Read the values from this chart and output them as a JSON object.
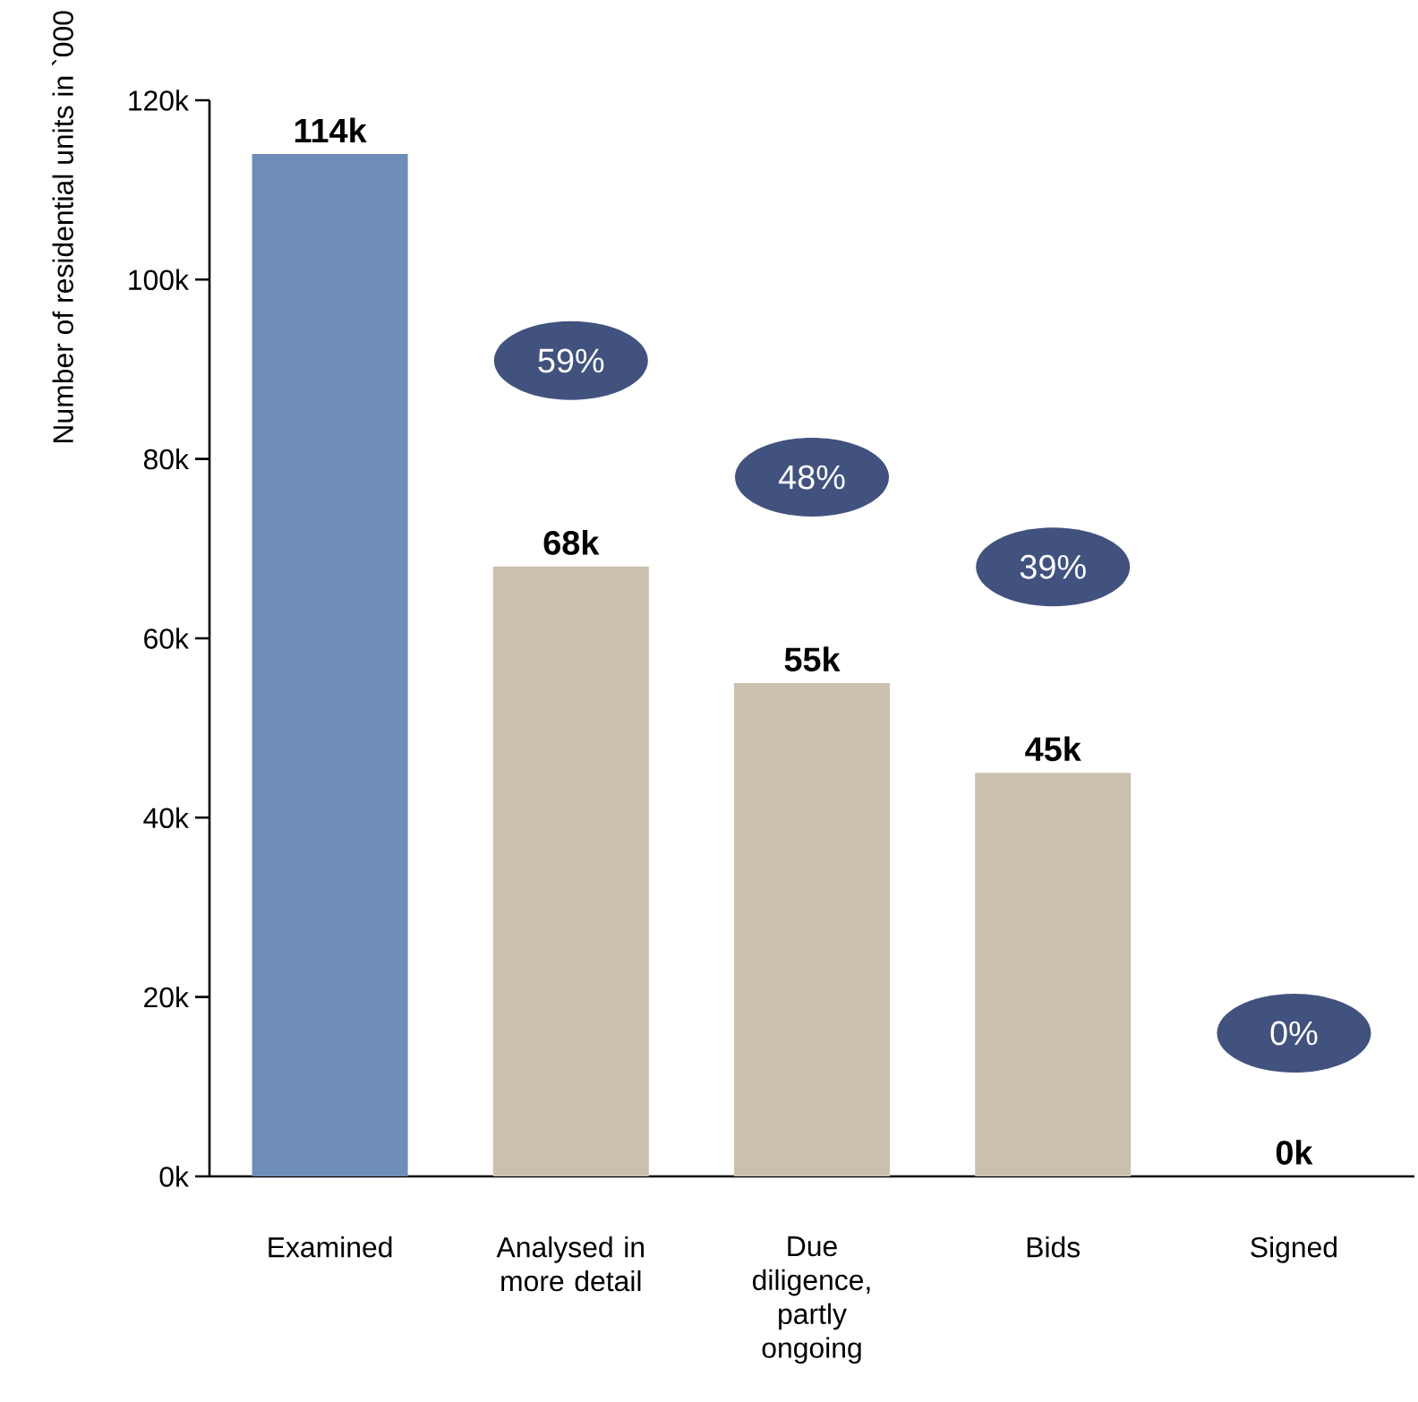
{
  "chart_data": {
    "type": "bar",
    "ylabel": "Number of residential units in `000",
    "categories": [
      "Examined",
      "Analysed in more detail",
      "Due diligence, partly ongoing",
      "Bids",
      "Signed"
    ],
    "values": [
      114,
      68,
      55,
      45,
      0
    ],
    "value_labels": [
      "114k",
      "68k",
      "55k",
      "45k",
      "0k"
    ],
    "colors": [
      "#6e8db9",
      "#cbc0ae",
      "#cbc0ae",
      "#cbc0ae",
      "#cbc0ae"
    ],
    "ylim": [
      0,
      120
    ],
    "yticks": [
      {
        "value": 0,
        "label": "0k"
      },
      {
        "value": 20,
        "label": "20k"
      },
      {
        "value": 40,
        "label": "40k"
      },
      {
        "value": 60,
        "label": "60k"
      },
      {
        "value": 80,
        "label": "80k"
      },
      {
        "value": 100,
        "label": "100k"
      },
      {
        "value": 120,
        "label": "120k"
      }
    ],
    "grid": false,
    "annotations": [
      "59%",
      "48%",
      "39%",
      "0%"
    ]
  }
}
